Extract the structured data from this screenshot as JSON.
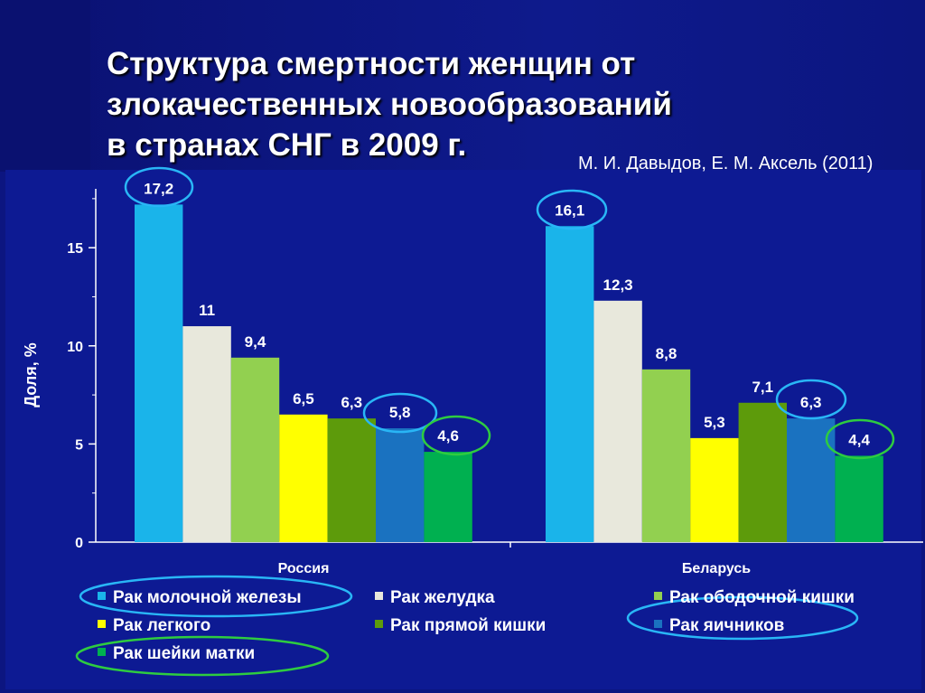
{
  "slide": {
    "title_lines": [
      "Структура смертности женщин от",
      "злокачественных новообразований",
      "в странах СНГ в 2009 г."
    ],
    "source": "М. И. Давыдов, Е. М. Аксель (2011)"
  },
  "chart_data": {
    "type": "bar",
    "categories": [
      "Россия",
      "Беларусь"
    ],
    "ylabel": "Доля, %",
    "xlabel": "",
    "ylim": [
      0,
      18
    ],
    "yticks": [
      0,
      5,
      10,
      15
    ],
    "legend_position": "bottom",
    "series": [
      {
        "name": "Рак молочной железы",
        "color": "#1ab4ea",
        "values": [
          17.2,
          16.1
        ],
        "labels": [
          "17,2",
          "16,1"
        ]
      },
      {
        "name": "Рак желудка",
        "color": "#e8e8dc",
        "values": [
          11,
          12.3
        ],
        "labels": [
          "11",
          "12,3"
        ]
      },
      {
        "name": "Рак ободочной кишки",
        "color": "#92d050",
        "values": [
          9.4,
          8.8
        ],
        "labels": [
          "9,4",
          "8,8"
        ]
      },
      {
        "name": "Рак легкого",
        "color": "#ffff00",
        "values": [
          6.5,
          5.3
        ],
        "labels": [
          "6,5",
          "5,3"
        ]
      },
      {
        "name": "Рак прямой кишки",
        "color": "#5d9b0b",
        "values": [
          6.3,
          7.1
        ],
        "labels": [
          "6,3",
          "7,1"
        ]
      },
      {
        "name": "Рак яичников",
        "color": "#1a72c0",
        "values": [
          5.8,
          6.3
        ],
        "labels": [
          "5,8",
          "6,3"
        ]
      },
      {
        "name": "Рак шейки матки",
        "color": "#00b050",
        "values": [
          4.6,
          4.4
        ],
        "labels": [
          "4,6",
          "4,4"
        ]
      }
    ],
    "highlight_colors": {
      "blue": "#29b6f6",
      "green": "#2ecc40"
    }
  }
}
